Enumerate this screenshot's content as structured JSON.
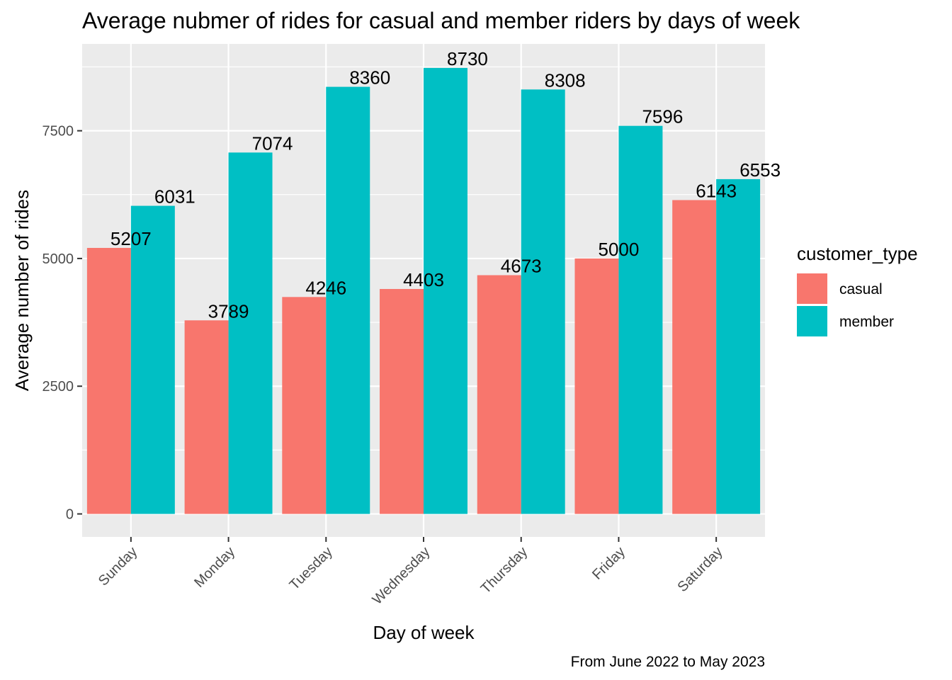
{
  "chart_data": {
    "type": "bar",
    "title": "Average nubmer of rides for casual and member riders by days of week",
    "xlabel": "Day of week",
    "ylabel": "Average number of rides",
    "caption": "From June 2022 to May 2023",
    "categories": [
      "Sunday",
      "Monday",
      "Tuesday",
      "Wednesday",
      "Thursday",
      "Friday",
      "Saturday"
    ],
    "series": [
      {
        "name": "casual",
        "color": "#F8766D",
        "values": [
          5207,
          3789,
          4246,
          4403,
          4673,
          5000,
          6143
        ]
      },
      {
        "name": "member",
        "color": "#00BFC4",
        "values": [
          6031,
          7074,
          8360,
          8730,
          8308,
          7596,
          6553
        ]
      }
    ],
    "ylim": [
      -450,
      9200
    ],
    "y_ticks": [
      0,
      2500,
      5000,
      7500
    ],
    "y_tick_labels": [
      "0",
      "2500",
      "5000",
      "7500"
    ],
    "legend": {
      "title": "customer_type",
      "position": "right"
    },
    "grid": true,
    "panel_background": "#EBEBEB",
    "x_tick_rotation_deg": -45
  }
}
